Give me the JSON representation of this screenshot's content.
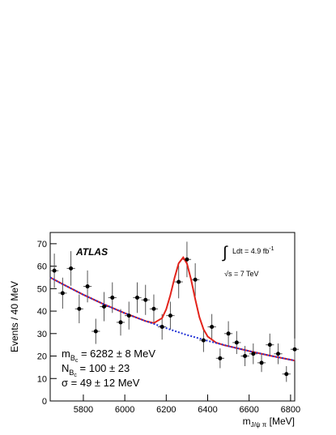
{
  "chart_data": {
    "type": "scatter",
    "y_label": "Events / 40 MeV",
    "x_label": {
      "main": "m",
      "sub": "J/ψ π",
      "unit": " [MeV]"
    },
    "brand": "ATLAS",
    "lumi": {
      "integral": "∫",
      "text": "Ldt = 4.9 fb",
      "sup": "-1"
    },
    "energy": "√s = 7 TeV",
    "annotations": [
      {
        "main": "m",
        "sub": "B",
        "subsub": "c",
        "rest": " = 6282 ± 8 MeV"
      },
      {
        "main": "N",
        "sub": "B",
        "subsub": "c",
        "rest": " = 100 ± 23"
      },
      {
        "main": "σ = 49 ± 12 MeV"
      }
    ],
    "xlim": [
      5640,
      6820
    ],
    "ylim": [
      0,
      75
    ],
    "xticks": [
      5800,
      6000,
      6200,
      6400,
      6600,
      6800
    ],
    "yticks": [
      0,
      10,
      20,
      30,
      40,
      50,
      60,
      70
    ],
    "points": {
      "color": "#000000",
      "xerr": 20,
      "x": [
        5660,
        5700,
        5740,
        5780,
        5820,
        5860,
        5900,
        5940,
        5980,
        6020,
        6060,
        6100,
        6140,
        6180,
        6220,
        6260,
        6300,
        6340,
        6380,
        6420,
        6460,
        6500,
        6540,
        6580,
        6620,
        6660,
        6700,
        6740,
        6780,
        6820
      ],
      "values": [
        58,
        48,
        59,
        41,
        51,
        31,
        42,
        46,
        35,
        38,
        46,
        45,
        41,
        33,
        38,
        53,
        63,
        54,
        27,
        33,
        19,
        30,
        26,
        20,
        21,
        17,
        25,
        21,
        12,
        23
      ],
      "errors": [
        7.6,
        6.9,
        7.7,
        6.4,
        7.1,
        5.6,
        6.5,
        6.8,
        5.9,
        6.2,
        6.8,
        6.7,
        6.4,
        5.7,
        6.2,
        7.3,
        7.9,
        7.3,
        5.2,
        5.7,
        4.4,
        5.5,
        5.1,
        4.5,
        4.6,
        4.1,
        5.0,
        4.6,
        3.5,
        4.8
      ]
    },
    "curves": [
      {
        "color": "#e3231b",
        "dashed": false,
        "x": [
          5640,
          5700,
          5800,
          5900,
          6000,
          6100,
          6140,
          6180,
          6200,
          6220,
          6240,
          6260,
          6282,
          6300,
          6320,
          6340,
          6360,
          6380,
          6400,
          6440,
          6480,
          6500,
          6600,
          6700,
          6820
        ],
        "values": [
          55,
          52.0,
          47.3,
          43.0,
          39.1,
          35.6,
          34.7,
          36.9,
          40.8,
          47.1,
          54.8,
          61.3,
          63.9,
          61.2,
          54.1,
          45.2,
          37.3,
          31.9,
          28.7,
          26.0,
          24.8,
          24.4,
          22.2,
          20.2,
          18
        ]
      },
      {
        "color": "#2233d6",
        "dashed": true,
        "x": [
          5640,
          5700,
          5800,
          5900,
          6000,
          6100,
          6200,
          6300,
          6400,
          6500,
          6600,
          6700,
          6820
        ],
        "values": [
          55,
          52.0,
          47.3,
          43.0,
          39.1,
          35.6,
          32.4,
          29.4,
          26.8,
          24.4,
          22.2,
          20.2,
          18
        ]
      }
    ]
  }
}
